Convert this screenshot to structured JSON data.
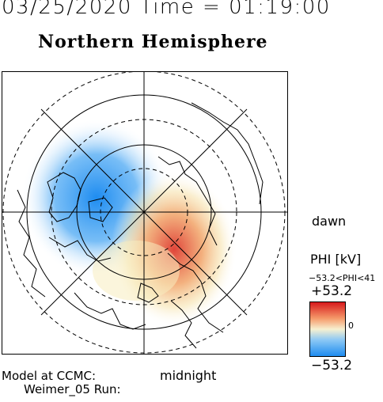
{
  "header": {
    "datetime": "03/25/2020 Time = 01:19:00",
    "hemisphere": "Northern Hemisphere"
  },
  "map": {
    "direction_labels": {
      "dawn": "dawn",
      "midnight": "midnight"
    },
    "field": {
      "max_value": 53.2,
      "min_value": -53.2
    }
  },
  "legend": {
    "title": "PHI [kV]",
    "range_text": "−53.2<PHI<41",
    "max_label": "+53.2",
    "min_label": "−53.2",
    "zero_label": "0",
    "colors": {
      "positive": "#d7191c",
      "middle": "#f7f0d0",
      "negative": "#1e90ff"
    }
  },
  "footer": {
    "model_label": "Model at CCMC:",
    "run_label": "Weimer_05 Run:"
  }
}
